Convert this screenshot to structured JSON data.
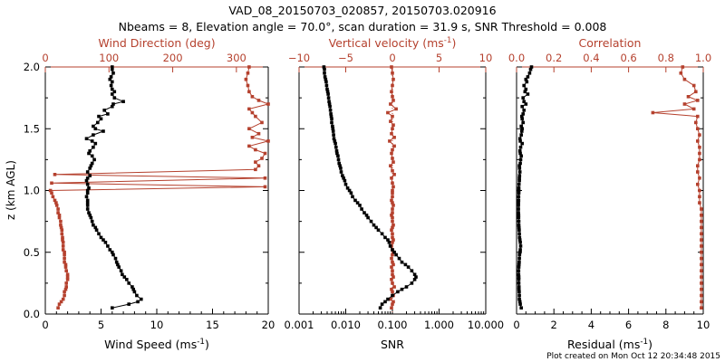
{
  "figure": {
    "title_line1": "VAD_08_20150703_020857, 20150703.020916",
    "title_line2": "Nbeams = 8, Elevation angle = 70.0°, scan duration = 31.9 s, SNR Threshold = 0.008",
    "footer": "Plot created on Mon Oct 12 20:34:48 2015",
    "ylabel": "z (km AGL)",
    "colors": {
      "black": "#000000",
      "red": "#b5412e"
    }
  },
  "chart_data": [
    {
      "type": "scatter",
      "name": "wind-profile",
      "title_top": "Wind Direction (deg)",
      "xlabel_bottom": "Wind Speed (ms",
      "xlabel_bottom_sup": "-1",
      "xlabel_bottom_end": ")",
      "bottom_axis": {
        "range": [
          0,
          20
        ],
        "ticks": [
          0,
          5,
          10,
          15,
          20
        ],
        "labels": [
          "0",
          "5",
          "10",
          "15",
          "20"
        ]
      },
      "top_axis": {
        "range": [
          0,
          350
        ],
        "ticks": [
          0,
          100,
          200,
          300
        ],
        "labels": [
          "0",
          "100",
          "200",
          "300"
        ]
      },
      "y_axis": {
        "range": [
          0.0,
          2.0
        ],
        "ticks": [
          0.0,
          0.5,
          1.0,
          1.5,
          2.0
        ],
        "labels": [
          "0.0",
          "0.5",
          "1.0",
          "1.5",
          "2.0"
        ]
      },
      "wind_speed": {
        "z": [
          0.05,
          0.08,
          0.1,
          0.12,
          0.15,
          0.18,
          0.2,
          0.22,
          0.25,
          0.28,
          0.3,
          0.32,
          0.35,
          0.38,
          0.4,
          0.42,
          0.45,
          0.48,
          0.5,
          0.52,
          0.55,
          0.58,
          0.6,
          0.62,
          0.65,
          0.68,
          0.7,
          0.72,
          0.75,
          0.78,
          0.8,
          0.82,
          0.85,
          0.88,
          0.9,
          0.92,
          0.95,
          0.98,
          1.0,
          1.02,
          1.05,
          1.08,
          1.1,
          1.12,
          1.15,
          1.18,
          1.2,
          1.22,
          1.25,
          1.28,
          1.3,
          1.32,
          1.35,
          1.38,
          1.4,
          1.42,
          1.45,
          1.48,
          1.5,
          1.52,
          1.55,
          1.58,
          1.6,
          1.62,
          1.65,
          1.68,
          1.7,
          1.72,
          1.75,
          1.78,
          1.8,
          1.82,
          1.85,
          1.88,
          1.9,
          1.92,
          1.95,
          1.98,
          2.0
        ],
        "value": [
          6.0,
          7.5,
          8.3,
          8.6,
          8.2,
          8.0,
          7.9,
          7.8,
          7.5,
          7.3,
          7.1,
          6.9,
          6.8,
          6.6,
          6.5,
          6.4,
          6.3,
          6.1,
          6.0,
          5.8,
          5.6,
          5.4,
          5.2,
          5.0,
          4.8,
          4.6,
          4.5,
          4.3,
          4.2,
          4.1,
          4.0,
          3.9,
          3.8,
          3.8,
          3.8,
          3.8,
          3.7,
          3.8,
          3.8,
          3.9,
          3.8,
          3.7,
          3.8,
          4.0,
          3.8,
          4.0,
          4.1,
          4.2,
          4.4,
          4.2,
          3.9,
          4.0,
          4.3,
          4.5,
          4.2,
          3.7,
          4.3,
          5.2,
          4.5,
          4.3,
          4.7,
          5.0,
          4.8,
          5.6,
          5.3,
          6.0,
          6.1,
          7.0,
          6.2,
          6.0,
          6.2,
          6.0,
          5.9,
          6.0,
          5.8,
          5.9,
          6.1,
          6.0,
          6.0
        ]
      },
      "wind_direction": {
        "z": [
          0.05,
          0.08,
          0.1,
          0.12,
          0.15,
          0.18,
          0.2,
          0.22,
          0.25,
          0.28,
          0.3,
          0.32,
          0.35,
          0.38,
          0.4,
          0.42,
          0.45,
          0.48,
          0.5,
          0.52,
          0.55,
          0.58,
          0.6,
          0.62,
          0.65,
          0.68,
          0.7,
          0.72,
          0.75,
          0.78,
          0.8,
          0.82,
          0.85,
          0.88,
          0.9,
          0.92,
          0.95,
          0.98,
          1.0,
          1.03,
          1.06,
          1.1,
          1.13,
          1.17,
          1.2,
          1.23,
          1.26,
          1.3,
          1.33,
          1.36,
          1.4,
          1.43,
          1.46,
          1.5,
          1.55,
          1.6,
          1.63,
          1.66,
          1.7,
          1.73,
          1.76,
          1.8,
          1.85,
          1.9,
          1.95,
          2.0
        ],
        "value": [
          20,
          22,
          25,
          28,
          30,
          30,
          32,
          33,
          33,
          35,
          35,
          35,
          33,
          32,
          32,
          30,
          30,
          30,
          30,
          28,
          28,
          28,
          27,
          27,
          26,
          26,
          25,
          24,
          24,
          22,
          22,
          20,
          20,
          18,
          17,
          15,
          12,
          10,
          8,
          345,
          10,
          345,
          15,
          330,
          335,
          330,
          340,
          345,
          330,
          320,
          350,
          325,
          335,
          320,
          340,
          330,
          325,
          320,
          350,
          335,
          325,
          320,
          318,
          315,
          318,
          320
        ]
      }
    },
    {
      "type": "scatter",
      "name": "vertical-velocity-snr",
      "title_top": "Vertical velocity (ms",
      "title_top_sup": "-1",
      "title_top_end": ")",
      "xlabel_bottom": "SNR",
      "bottom_axis": {
        "scale": "log",
        "range": [
          0.001,
          10.0
        ],
        "ticks": [
          0.001,
          0.01,
          0.1,
          1.0,
          10.0
        ],
        "labels": [
          "0.001",
          "0.010",
          "0.100",
          "1.000",
          "10.000"
        ]
      },
      "top_axis": {
        "range": [
          -10,
          10
        ],
        "ticks": [
          -10,
          -5,
          0,
          5,
          10
        ],
        "labels": [
          "−10",
          "−5",
          "0",
          "5",
          "10"
        ]
      },
      "y_axis": {
        "range": [
          0.0,
          2.0
        ]
      },
      "snr": {
        "z": [
          0.05,
          0.08,
          0.1,
          0.12,
          0.15,
          0.18,
          0.2,
          0.22,
          0.25,
          0.28,
          0.3,
          0.32,
          0.35,
          0.38,
          0.4,
          0.42,
          0.45,
          0.48,
          0.5,
          0.52,
          0.55,
          0.58,
          0.6,
          0.62,
          0.65,
          0.68,
          0.7,
          0.72,
          0.75,
          0.78,
          0.8,
          0.82,
          0.85,
          0.88,
          0.9,
          0.92,
          0.95,
          0.98,
          1.0,
          1.02,
          1.05,
          1.08,
          1.1,
          1.12,
          1.15,
          1.18,
          1.2,
          1.22,
          1.25,
          1.28,
          1.3,
          1.32,
          1.35,
          1.38,
          1.4,
          1.42,
          1.45,
          1.48,
          1.5,
          1.52,
          1.55,
          1.58,
          1.6,
          1.62,
          1.65,
          1.68,
          1.7,
          1.72,
          1.75,
          1.78,
          1.8,
          1.82,
          1.85,
          1.88,
          1.9,
          1.92,
          1.95,
          1.98,
          2.0
        ],
        "value": [
          0.055,
          0.06,
          0.07,
          0.08,
          0.1,
          0.13,
          0.16,
          0.2,
          0.26,
          0.3,
          0.32,
          0.3,
          0.26,
          0.22,
          0.19,
          0.16,
          0.14,
          0.12,
          0.11,
          0.1,
          0.09,
          0.085,
          0.08,
          0.07,
          0.06,
          0.05,
          0.045,
          0.04,
          0.035,
          0.03,
          0.028,
          0.025,
          0.022,
          0.02,
          0.018,
          0.016,
          0.014,
          0.013,
          0.012,
          0.011,
          0.01,
          0.0095,
          0.009,
          0.0085,
          0.008,
          0.0078,
          0.0075,
          0.0072,
          0.007,
          0.0068,
          0.0065,
          0.0064,
          0.0062,
          0.006,
          0.0058,
          0.0056,
          0.0055,
          0.0054,
          0.0053,
          0.0052,
          0.005,
          0.005,
          0.0049,
          0.0048,
          0.0047,
          0.0046,
          0.0045,
          0.0044,
          0.0043,
          0.0042,
          0.0041,
          0.004,
          0.0039,
          0.0038,
          0.0037,
          0.0036,
          0.0035,
          0.0035,
          0.0034
        ]
      },
      "vertical_velocity": {
        "z": [
          0.05,
          0.08,
          0.1,
          0.12,
          0.15,
          0.18,
          0.2,
          0.22,
          0.25,
          0.28,
          0.3,
          0.32,
          0.35,
          0.38,
          0.4,
          0.42,
          0.45,
          0.48,
          0.5,
          0.52,
          0.55,
          0.58,
          0.6,
          0.62,
          0.65,
          0.68,
          0.7,
          0.72,
          0.75,
          0.78,
          0.8,
          0.82,
          0.85,
          0.88,
          0.9,
          0.92,
          0.95,
          0.98,
          1.0,
          1.03,
          1.06,
          1.1,
          1.13,
          1.16,
          1.2,
          1.23,
          1.26,
          1.3,
          1.33,
          1.36,
          1.4,
          1.43,
          1.46,
          1.5,
          1.53,
          1.56,
          1.6,
          1.63,
          1.66,
          1.7,
          1.73,
          1.76,
          1.8,
          1.85,
          1.9,
          1.95,
          2.0
        ],
        "value": [
          -0.1,
          0.0,
          0.1,
          -0.2,
          0.1,
          0.0,
          -0.1,
          0.2,
          0.0,
          -0.1,
          0.1,
          0.0,
          0.0,
          -0.1,
          0.1,
          0.0,
          -0.1,
          0.0,
          0.1,
          0.0,
          -0.1,
          0.0,
          0.1,
          0.0,
          0.0,
          -0.1,
          0.0,
          0.1,
          0.0,
          0.0,
          -0.1,
          0.0,
          0.0,
          0.1,
          0.0,
          -0.1,
          0.0,
          0.0,
          0.0,
          0.1,
          0.0,
          -0.1,
          0.2,
          0.0,
          -0.2,
          0.1,
          0.0,
          -0.1,
          0.0,
          0.2,
          -0.3,
          0.2,
          -0.1,
          0.0,
          0.1,
          -0.2,
          0.0,
          -0.5,
          0.4,
          -0.2,
          0.1,
          0.0,
          -0.1,
          0.0,
          0.1,
          0.0,
          -0.1
        ]
      }
    },
    {
      "type": "scatter",
      "name": "correlation-residual",
      "title_top": "Correlation",
      "xlabel_bottom": "Residual (ms",
      "xlabel_bottom_sup": "-1",
      "xlabel_bottom_end": ")",
      "bottom_axis": {
        "range": [
          0,
          10
        ],
        "ticks": [
          0,
          2,
          4,
          6,
          8,
          10
        ],
        "labels": [
          "0",
          "2",
          "4",
          "6",
          "8",
          "10"
        ]
      },
      "top_axis": {
        "range": [
          0.0,
          1.0
        ],
        "ticks": [
          0.0,
          0.2,
          0.4,
          0.6,
          0.8,
          1.0
        ],
        "labels": [
          "0.0",
          "0.2",
          "0.4",
          "0.6",
          "0.8",
          "1.0"
        ]
      },
      "y_axis": {
        "range": [
          0.0,
          2.0
        ]
      },
      "residual": {
        "z": [
          0.05,
          0.08,
          0.1,
          0.12,
          0.15,
          0.18,
          0.2,
          0.22,
          0.25,
          0.28,
          0.3,
          0.32,
          0.35,
          0.38,
          0.4,
          0.42,
          0.45,
          0.48,
          0.5,
          0.52,
          0.55,
          0.58,
          0.6,
          0.62,
          0.65,
          0.68,
          0.7,
          0.72,
          0.75,
          0.78,
          0.8,
          0.82,
          0.85,
          0.88,
          0.9,
          0.92,
          0.95,
          0.98,
          1.0,
          1.02,
          1.05,
          1.08,
          1.1,
          1.12,
          1.15,
          1.18,
          1.2,
          1.22,
          1.25,
          1.28,
          1.3,
          1.32,
          1.35,
          1.38,
          1.4,
          1.42,
          1.45,
          1.48,
          1.5,
          1.52,
          1.55,
          1.58,
          1.6,
          1.62,
          1.65,
          1.68,
          1.7,
          1.72,
          1.75,
          1.78,
          1.8,
          1.82,
          1.85,
          1.88,
          1.9,
          1.92,
          1.95,
          1.98,
          2.0
        ],
        "value": [
          0.25,
          0.2,
          0.18,
          0.15,
          0.15,
          0.14,
          0.13,
          0.13,
          0.12,
          0.12,
          0.12,
          0.11,
          0.11,
          0.12,
          0.13,
          0.14,
          0.15,
          0.16,
          0.18,
          0.2,
          0.22,
          0.2,
          0.18,
          0.16,
          0.15,
          0.14,
          0.13,
          0.12,
          0.12,
          0.11,
          0.11,
          0.1,
          0.1,
          0.1,
          0.1,
          0.11,
          0.11,
          0.12,
          0.12,
          0.12,
          0.13,
          0.15,
          0.15,
          0.16,
          0.18,
          0.16,
          0.15,
          0.2,
          0.22,
          0.25,
          0.2,
          0.18,
          0.22,
          0.3,
          0.2,
          0.18,
          0.25,
          0.28,
          0.3,
          0.25,
          0.35,
          0.3,
          0.28,
          0.35,
          0.4,
          0.3,
          0.5,
          0.4,
          0.35,
          0.6,
          0.45,
          0.5,
          0.4,
          0.55,
          0.5,
          0.6,
          0.7,
          0.75,
          0.8
        ]
      },
      "correlation": {
        "z": [
          0.05,
          0.1,
          0.15,
          0.2,
          0.25,
          0.3,
          0.35,
          0.4,
          0.45,
          0.5,
          0.55,
          0.6,
          0.65,
          0.7,
          0.75,
          0.8,
          0.85,
          0.9,
          0.95,
          1.0,
          1.05,
          1.1,
          1.15,
          1.2,
          1.25,
          1.3,
          1.35,
          1.4,
          1.45,
          1.5,
          1.55,
          1.6,
          1.63,
          1.66,
          1.7,
          1.73,
          1.76,
          1.8,
          1.85,
          1.9,
          1.95,
          2.0
        ],
        "value": [
          0.99,
          0.99,
          0.99,
          0.99,
          0.99,
          0.99,
          0.99,
          0.99,
          0.99,
          0.99,
          0.99,
          0.99,
          0.99,
          0.99,
          0.99,
          0.99,
          0.99,
          0.98,
          0.98,
          0.98,
          0.97,
          0.98,
          0.97,
          0.97,
          0.98,
          0.98,
          0.98,
          0.97,
          0.98,
          0.97,
          0.96,
          0.97,
          0.73,
          0.95,
          0.9,
          0.97,
          0.92,
          0.96,
          0.95,
          0.9,
          0.88,
          0.89
        ]
      }
    }
  ]
}
